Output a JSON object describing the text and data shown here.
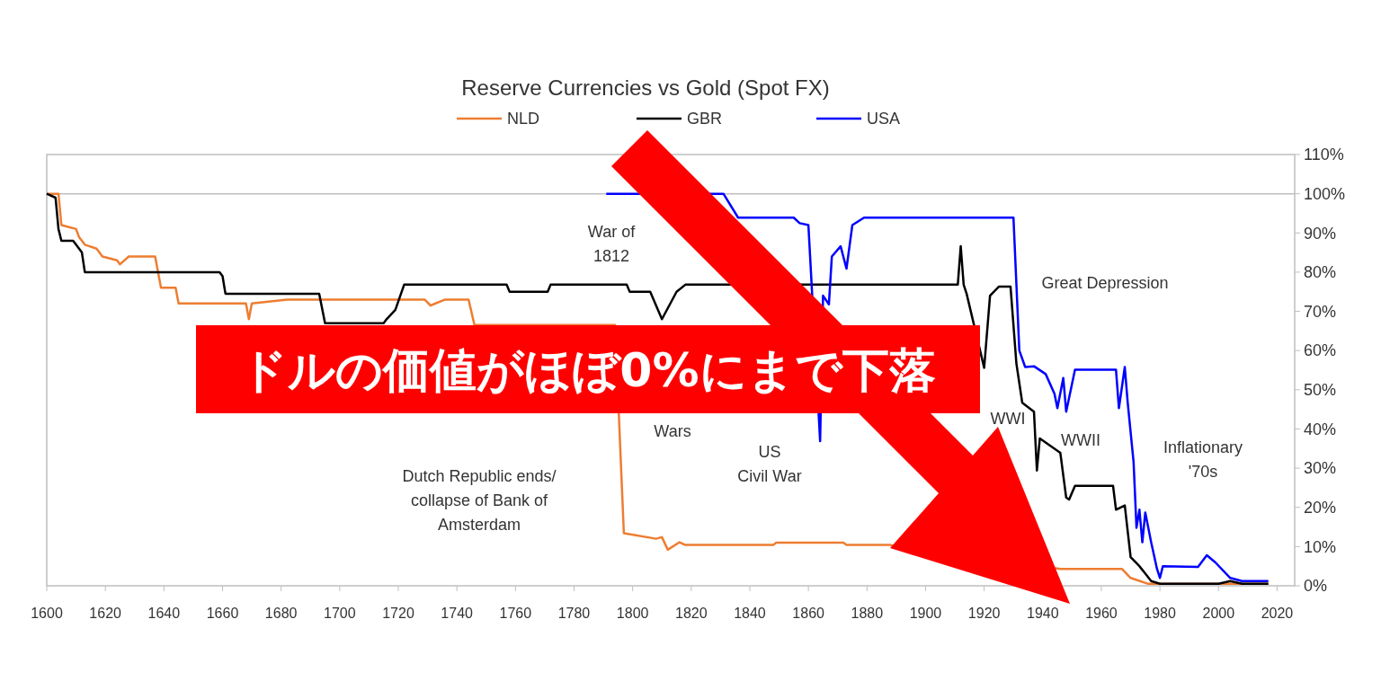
{
  "chart_data": {
    "type": "line",
    "title": "Reserve Currencies vs Gold (Spot FX)",
    "xlim": [
      1600,
      2026
    ],
    "xticks": [
      1600,
      1620,
      1640,
      1660,
      1680,
      1700,
      1720,
      1740,
      1760,
      1780,
      1800,
      1820,
      1840,
      1860,
      1880,
      1900,
      1920,
      1940,
      1960,
      1980,
      2000,
      2020
    ],
    "ylim": [
      0,
      110
    ],
    "yticks": [
      {
        "value": 0,
        "label": "0%"
      },
      {
        "value": 10,
        "label": "10%"
      },
      {
        "value": 20,
        "label": "20%"
      },
      {
        "value": 30,
        "label": "30%"
      },
      {
        "value": 40,
        "label": "40%"
      },
      {
        "value": 50,
        "label": "50%"
      },
      {
        "value": 60,
        "label": "60%"
      },
      {
        "value": 70,
        "label": "70%"
      },
      {
        "value": 80,
        "label": "80%"
      },
      {
        "value": 90,
        "label": "90%"
      },
      {
        "value": 100,
        "label": "100%"
      },
      {
        "value": 110,
        "label": "110%"
      }
    ],
    "legend": "top",
    "grid": false,
    "ref_lines": [
      {
        "axis": "y",
        "value": 100,
        "color": "#bfbfbf"
      }
    ],
    "series": [
      {
        "name": "NLD",
        "color": "#ed7d31",
        "x": [
          1600,
          1604,
          1605,
          1610,
          1611,
          1613,
          1617,
          1619,
          1624,
          1625,
          1628,
          1637,
          1638,
          1639,
          1644,
          1645,
          1668,
          1669,
          1670,
          1682,
          1686,
          1729,
          1731,
          1736,
          1744,
          1746,
          1794,
          1797,
          1808,
          1810,
          1812,
          1816,
          1818,
          1848,
          1849,
          1872,
          1873,
          1888,
          1946,
          1967,
          1970,
          1976,
          2017
        ],
        "values": [
          100,
          100,
          92,
          91,
          89,
          87,
          86,
          84,
          83,
          82,
          84,
          84,
          80,
          76,
          76,
          72,
          72,
          68,
          72,
          73,
          73,
          73,
          71.5,
          73,
          73,
          66.5,
          66.5,
          13.4,
          12,
          12.4,
          9.2,
          11.1,
          10.4,
          10.4,
          11,
          11,
          10.4,
          10.4,
          4.3,
          4.3,
          2,
          0.5,
          0.5
        ]
      },
      {
        "name": "GBR",
        "color": "#000000",
        "x": [
          1600,
          1603,
          1604,
          1605,
          1609,
          1610,
          1612,
          1613,
          1659,
          1660,
          1661,
          1693,
          1695,
          1715,
          1716,
          1719,
          1722,
          1757,
          1758,
          1771,
          1772,
          1798,
          1799,
          1806,
          1810,
          1815,
          1818,
          1911,
          1912,
          1913,
          1914,
          1920,
          1922,
          1925,
          1929,
          1931,
          1933,
          1937,
          1938,
          1939,
          1946,
          1948,
          1949,
          1951,
          1964,
          1965,
          1968,
          1970,
          1973,
          1977,
          1980,
          2000,
          2004,
          2008,
          2017
        ],
        "values": [
          100,
          99,
          91,
          88,
          88,
          87,
          85,
          80,
          80,
          79,
          74.5,
          74.5,
          67,
          67,
          68,
          70.4,
          76.8,
          76.8,
          75,
          75,
          76.8,
          76.8,
          75,
          75,
          68,
          75,
          76.8,
          76.8,
          86.6,
          76.8,
          74.5,
          55.6,
          74,
          76.3,
          76.3,
          56.7,
          46.7,
          44.4,
          29.4,
          37.6,
          33.9,
          22.5,
          22,
          25.5,
          25.5,
          19.4,
          20.5,
          7.3,
          5,
          1.2,
          0.5,
          0.5,
          1.2,
          0.5,
          0.5
        ]
      },
      {
        "name": "USA",
        "color": "#0000ff",
        "x": [
          1791,
          1831,
          1836,
          1838,
          1855,
          1857,
          1860,
          1864,
          1865,
          1867,
          1868,
          1871,
          1873,
          1875,
          1879,
          1930,
          1932,
          1934,
          1937,
          1941,
          1944,
          1945,
          1947,
          1948,
          1951,
          1965,
          1966,
          1968,
          1969,
          1971,
          1972,
          1973,
          1974,
          1975,
          1977,
          1979,
          1980,
          1981,
          1993,
          1996,
          1999,
          2004,
          2008,
          2017
        ],
        "values": [
          100,
          100,
          93.9,
          93.9,
          93.9,
          92.5,
          92,
          36.9,
          74,
          71.8,
          84,
          86.6,
          80.9,
          92,
          93.9,
          93.9,
          60,
          55.8,
          56,
          54,
          49,
          45.3,
          53,
          44.4,
          55.1,
          55.1,
          45.3,
          55.8,
          46.7,
          31.6,
          14.8,
          19.4,
          11.1,
          18.7,
          11.1,
          4.3,
          2,
          5,
          4.8,
          7.8,
          5.9,
          2,
          1.2,
          1.2
        ]
      }
    ],
    "annotations": [
      "War of\n1812",
      "Wars",
      "US\nCivil War",
      "Dutch Republic ends/\ncollapse of Bank of\nAmsterdam",
      "Great Depression",
      "WWI",
      "WWII",
      "Inflationary\n'70s",
      "ドルの価値がほぼ0%にまで下落"
    ]
  }
}
